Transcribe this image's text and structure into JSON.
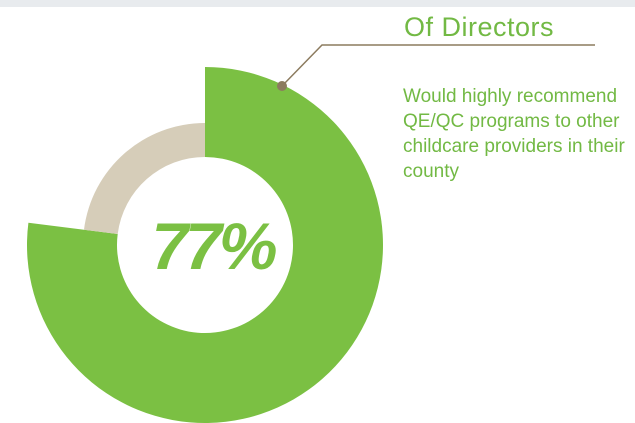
{
  "chart_data": {
    "type": "pie",
    "title": "Of Directors",
    "annotation": "Would highly recommend QE/QC programs to other childcare providers in their county",
    "values": [
      77,
      23
    ],
    "value_labels": [
      "77%",
      null
    ],
    "colors": [
      "#7bc043",
      "#d6cdb9"
    ]
  }
}
